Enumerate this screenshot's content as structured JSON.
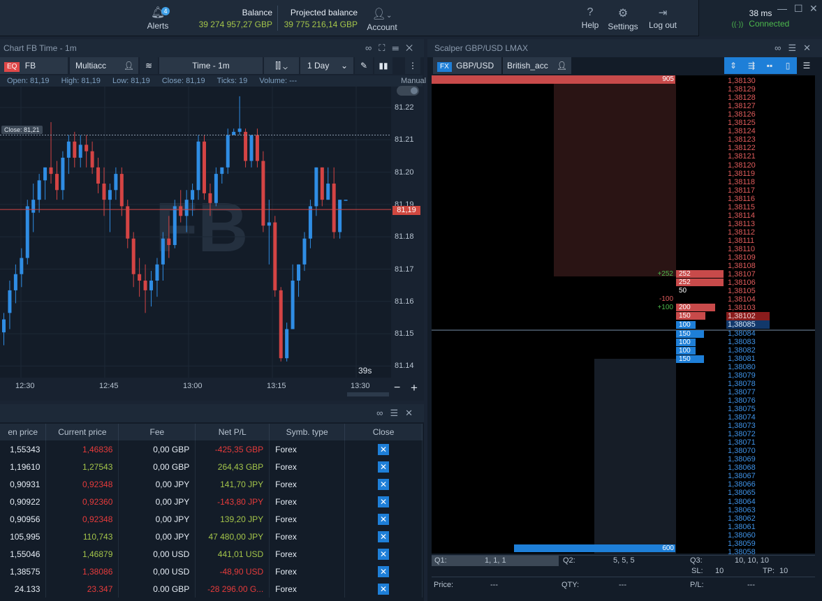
{
  "topbar": {
    "alerts_label": "Alerts",
    "alerts_badge": "4",
    "balance_label": "Balance",
    "balance_value": "39 274 957,27 GBP",
    "projected_label": "Projected balance",
    "projected_value": "39 775 216,14 GBP",
    "account_label": "Account",
    "help_label": "Help",
    "settings_label": "Settings",
    "logout_label": "Log out",
    "latency": "38 ms",
    "status": "Connected"
  },
  "chart": {
    "title": "Chart FB Time - 1m",
    "symbol_badge": "EQ",
    "symbol": "FB",
    "account": "Multiacc",
    "timeframe": "Time - 1m",
    "period": "1 Day",
    "mode": "Manual",
    "watermark": "FB",
    "close_tag": "Close: 81,21",
    "last_price": "81,19",
    "countdown": "39s",
    "ohlc": {
      "open": "Open:  81,19",
      "high": "High:  81,19",
      "low": "Low:  81,19",
      "close": "Close:  81,19",
      "ticks": "Ticks:  19",
      "volume": "Volume:  ---"
    },
    "y_ticks": [
      "81.22",
      "81.21",
      "81.20",
      "81.19",
      "81.18",
      "81.17",
      "81.16",
      "81.15",
      "81.14"
    ],
    "x_ticks": [
      "12:30",
      "12:45",
      "13:00",
      "13:15",
      "13:30"
    ]
  },
  "chart_data": {
    "type": "candlestick",
    "x_ticks": [
      "12:30",
      "12:45",
      "13:00",
      "13:15",
      "13:30"
    ],
    "ylim": [
      81.135,
      81.225
    ],
    "candles": [
      [
        81.149,
        81.155,
        81.145,
        81.153
      ],
      [
        81.155,
        81.165,
        81.15,
        81.162
      ],
      [
        81.162,
        81.17,
        81.158,
        81.167
      ],
      [
        81.167,
        81.175,
        81.163,
        81.172
      ],
      [
        81.172,
        81.19,
        81.17,
        81.188
      ],
      [
        81.186,
        81.195,
        81.18,
        81.19
      ],
      [
        81.19,
        81.198,
        81.186,
        81.196
      ],
      [
        81.196,
        81.2,
        81.19,
        81.2
      ],
      [
        81.2,
        81.214,
        81.195,
        81.198
      ],
      [
        81.198,
        81.202,
        81.19,
        81.193
      ],
      [
        81.193,
        81.205,
        81.19,
        81.203
      ],
      [
        81.203,
        81.21,
        81.198,
        81.208
      ],
      [
        81.208,
        81.211,
        81.2,
        81.203
      ],
      [
        81.203,
        81.21,
        81.2,
        81.207
      ],
      [
        81.207,
        81.21,
        81.2,
        81.205
      ],
      [
        81.205,
        81.208,
        81.198,
        81.2
      ],
      [
        81.2,
        81.203,
        81.192,
        81.195
      ],
      [
        81.195,
        81.2,
        81.185,
        81.19
      ],
      [
        81.19,
        81.195,
        81.18,
        81.193
      ],
      [
        81.193,
        81.2,
        81.19,
        81.198
      ],
      [
        81.198,
        81.2,
        81.185,
        81.188
      ],
      [
        81.188,
        81.19,
        81.175,
        81.178
      ],
      [
        81.178,
        81.18,
        81.163,
        81.167
      ],
      [
        81.167,
        81.172,
        81.16,
        81.165
      ],
      [
        81.165,
        81.17,
        81.155,
        81.162
      ],
      [
        81.162,
        81.168,
        81.157,
        81.165
      ],
      [
        81.165,
        81.172,
        81.16,
        81.17
      ],
      [
        81.17,
        81.18,
        81.165,
        81.178
      ],
      [
        81.178,
        81.185,
        81.172,
        81.176
      ],
      [
        81.176,
        81.19,
        81.175,
        81.188
      ],
      [
        81.188,
        81.193,
        81.183,
        81.185
      ],
      [
        81.185,
        81.193,
        81.18,
        81.19
      ],
      [
        81.19,
        81.195,
        81.185,
        81.193
      ],
      [
        81.193,
        81.21,
        81.19,
        81.208
      ],
      [
        81.208,
        81.21,
        81.19,
        81.192
      ],
      [
        81.192,
        81.195,
        81.185,
        81.189
      ],
      [
        81.189,
        81.2,
        81.188,
        81.198
      ],
      [
        81.198,
        81.2,
        81.195,
        81.2
      ],
      [
        81.2,
        81.212,
        81.198,
        81.21
      ],
      [
        81.21,
        81.212,
        81.21,
        81.211
      ],
      [
        81.211,
        81.222,
        81.21,
        81.212
      ],
      [
        81.211,
        81.212,
        81.2,
        81.202
      ],
      [
        81.202,
        81.21,
        81.2,
        81.21
      ],
      [
        81.21,
        81.212,
        81.2,
        81.202
      ],
      [
        81.202,
        81.205,
        81.18,
        81.182
      ],
      [
        81.182,
        81.19,
        81.17,
        81.183
      ],
      [
        81.183,
        81.185,
        81.16,
        81.162
      ],
      [
        81.162,
        81.163,
        81.14,
        81.141
      ],
      [
        81.141,
        81.152,
        81.14,
        81.15
      ],
      [
        81.15,
        81.17,
        81.15,
        81.165
      ],
      [
        81.165,
        81.17,
        81.16,
        81.17
      ],
      [
        81.17,
        81.18,
        81.168,
        81.178
      ],
      [
        81.178,
        81.19,
        81.175,
        81.188
      ],
      [
        81.188,
        81.2,
        81.185,
        81.2
      ],
      [
        81.2,
        81.2,
        81.188,
        81.19
      ],
      [
        81.19,
        81.2,
        81.19,
        81.195
      ],
      [
        81.195,
        81.2,
        81.178,
        81.18
      ],
      [
        81.18,
        81.19,
        81.178,
        81.19
      ],
      [
        81.19,
        81.19,
        81.19,
        81.19
      ]
    ]
  },
  "positions": {
    "columns": [
      "en price",
      "Current price",
      "Fee",
      "Net P/L",
      "Symb. type",
      "Close"
    ],
    "rows": [
      {
        "open": "1,55343",
        "current": "1,46836",
        "cur_color": "#e63b3b",
        "fee": "0,00 GBP",
        "pl": "-425,35 GBP",
        "pl_color": "#e63b3b",
        "type": "Forex"
      },
      {
        "open": "1,19610",
        "current": "1,27543",
        "cur_color": "#a4c54a",
        "fee": "0,00 GBP",
        "pl": "264,43 GBP",
        "pl_color": "#a4c54a",
        "type": "Forex"
      },
      {
        "open": "0,90931",
        "current": "0,92348",
        "cur_color": "#e63b3b",
        "fee": "0,00 JPY",
        "pl": "141,70 JPY",
        "pl_color": "#a4c54a",
        "type": "Forex"
      },
      {
        "open": "0,90922",
        "current": "0,92360",
        "cur_color": "#e63b3b",
        "fee": "0,00 JPY",
        "pl": "-143,80 JPY",
        "pl_color": "#e63b3b",
        "type": "Forex"
      },
      {
        "open": "0,90956",
        "current": "0,92348",
        "cur_color": "#e63b3b",
        "fee": "0,00 JPY",
        "pl": "139,20 JPY",
        "pl_color": "#a4c54a",
        "type": "Forex"
      },
      {
        "open": "105,995",
        "current": "110,743",
        "cur_color": "#a4c54a",
        "fee": "0,00 JPY",
        "pl": "47 480,00 JPY",
        "pl_color": "#a4c54a",
        "type": "Forex"
      },
      {
        "open": "1,55046",
        "current": "1,46879",
        "cur_color": "#a4c54a",
        "fee": "0,00 USD",
        "pl": "441,01 USD",
        "pl_color": "#a4c54a",
        "type": "Forex"
      },
      {
        "open": "1,38575",
        "current": "1,38086",
        "cur_color": "#e63b3b",
        "fee": "0,00 USD",
        "pl": "-48,90 USD",
        "pl_color": "#e63b3b",
        "type": "Forex"
      },
      {
        "open": "24.133",
        "current": "23.347",
        "cur_color": "#e63b3b",
        "fee": "0.00 GBP",
        "pl": "-28 296.00 G...",
        "pl_color": "#e63b3b",
        "type": "Forex"
      }
    ]
  },
  "scalper": {
    "title": "Scalper GBP/USD LMAX",
    "symbol_badge": "FX",
    "symbol": "GBP/USD LM",
    "account": "British_acc",
    "top_volume": "905",
    "bottom_volume": "600",
    "ask_prices": [
      "1,38130",
      "1,38129",
      "1,38128",
      "1,38127",
      "1,38126",
      "1,38125",
      "1,38124",
      "1,38123",
      "1,38122",
      "1,38121",
      "1,38120",
      "1,38119",
      "1,38118",
      "1,38117",
      "1,38116",
      "1,38115",
      "1,38114",
      "1,38113",
      "1,38112",
      "1,38111",
      "1,38110",
      "1,38109",
      "1,38108",
      "1,38107",
      "1,38106",
      "1,38105",
      "1,38104",
      "1,38103",
      "1,38102"
    ],
    "bid_prices": [
      "1,38085",
      "1,38084",
      "1,38083",
      "1,38082",
      "1,38081",
      "1,38080",
      "1,38079",
      "1,38078",
      "1,38077",
      "1,38076",
      "1,38075",
      "1,38074",
      "1,38073",
      "1,38072",
      "1,38071",
      "1,38070",
      "1,38069",
      "1,38068",
      "1,38067",
      "1,38066",
      "1,38065",
      "1,38064",
      "1,38063",
      "1,38062",
      "1,38061",
      "1,38060",
      "1,38059",
      "1,38058"
    ],
    "asks": [
      {
        "row": 23,
        "vol": "252",
        "delta": "+252"
      },
      {
        "row": 24,
        "vol": "252",
        "delta": ""
      },
      {
        "row": 25,
        "vol": "50",
        "delta": ""
      },
      {
        "row": 26,
        "vol": "",
        "delta": "-100"
      },
      {
        "row": 27,
        "vol": "200",
        "delta": "+100"
      },
      {
        "row": 28,
        "vol": "150",
        "delta": ""
      }
    ],
    "bids": [
      {
        "row": 0,
        "vol": "100"
      },
      {
        "row": 1,
        "vol": "150"
      },
      {
        "row": 2,
        "vol": "100"
      },
      {
        "row": 3,
        "vol": "100"
      },
      {
        "row": 4,
        "vol": "150"
      }
    ],
    "q1_label": "Q1:",
    "q1_value": "1, 1, 1",
    "q2_label": "Q2:",
    "q2_value": "5, 5, 5",
    "q3_label": "Q3:",
    "q3_value": "10, 10, 10",
    "sl_label": "SL:",
    "sl_value": "10",
    "tp_label": "TP:",
    "tp_value": "10",
    "price_label": "Price:",
    "price_value": "---",
    "qty_label": "QTY:",
    "qty_value": "---",
    "pl_label": "P/L:",
    "pl_value": "---"
  }
}
